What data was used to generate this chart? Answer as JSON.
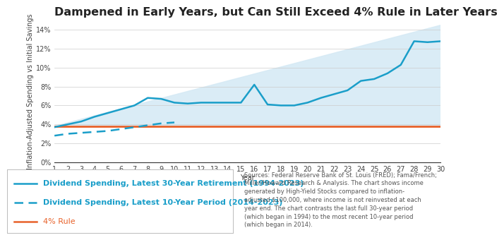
{
  "title": "Dampened in Early Years, but Can Still Exceed 4% Rule in Later Years",
  "xlabel": "Year",
  "ylabel": "Inflation-Adjusted Spending vs Initial Savings",
  "background_color": "#ffffff",
  "plot_bg_color": "#ffffff",
  "shading_color": "#d6eaf5",
  "ylim": [
    0,
    0.15
  ],
  "yticks": [
    0,
    0.02,
    0.04,
    0.06,
    0.08,
    0.1,
    0.12,
    0.14
  ],
  "ytick_labels": [
    "0%",
    "2%",
    "4%",
    "6%",
    "8%",
    "10%",
    "12%",
    "14%"
  ],
  "xlim": [
    1,
    30
  ],
  "xticks": [
    1,
    2,
    3,
    4,
    5,
    6,
    7,
    8,
    9,
    10,
    11,
    12,
    13,
    14,
    15,
    16,
    17,
    18,
    19,
    20,
    21,
    22,
    23,
    24,
    25,
    26,
    27,
    28,
    29,
    30
  ],
  "line30_color": "#1a9ec9",
  "line10_color": "#1a9ec9",
  "rule4_color": "#e8622a",
  "rule4_value": 0.038,
  "line30_x": [
    1,
    2,
    3,
    4,
    5,
    6,
    7,
    8,
    9,
    10,
    11,
    12,
    13,
    14,
    15,
    16,
    17,
    18,
    19,
    20,
    21,
    22,
    23,
    24,
    25,
    26,
    27,
    28,
    29,
    30
  ],
  "line30_y": [
    0.037,
    0.04,
    0.043,
    0.048,
    0.052,
    0.056,
    0.06,
    0.068,
    0.067,
    0.063,
    0.062,
    0.063,
    0.063,
    0.063,
    0.063,
    0.082,
    0.061,
    0.06,
    0.06,
    0.063,
    0.068,
    0.072,
    0.076,
    0.086,
    0.088,
    0.094,
    0.103,
    0.128,
    0.127,
    0.128
  ],
  "line10_x": [
    1,
    2,
    3,
    4,
    5,
    6,
    7,
    8,
    9,
    10
  ],
  "line10_y": [
    0.028,
    0.03,
    0.031,
    0.032,
    0.033,
    0.035,
    0.037,
    0.039,
    0.041,
    0.042
  ],
  "legend_line30_label": "Dividend Spending, Latest 30-Year Retirement (1994-2023)",
  "legend_line10_label": "Dividend Spending, Latest 10-Year Period (2014-2023)",
  "legend_rule4_label": "4% Rule",
  "sources_text": "Sources: Federal Reserve Bank of St. Louis (FRED); Fama/French;\nMiller/Howard Research & Analysis. The chart shows income\ngenerated by High-Yield Stocks compared to inflation-\nadjusted $100,000, where income is not reinvested at each\nyear end. The chart contrasts the last full 30-year period\n(which began in 1994) to the most recent 10-year period\n(which began in 2014).",
  "title_fontsize": 11.5,
  "axis_label_fontsize": 7,
  "tick_fontsize": 7,
  "legend_fontsize": 8,
  "sources_fontsize": 6
}
